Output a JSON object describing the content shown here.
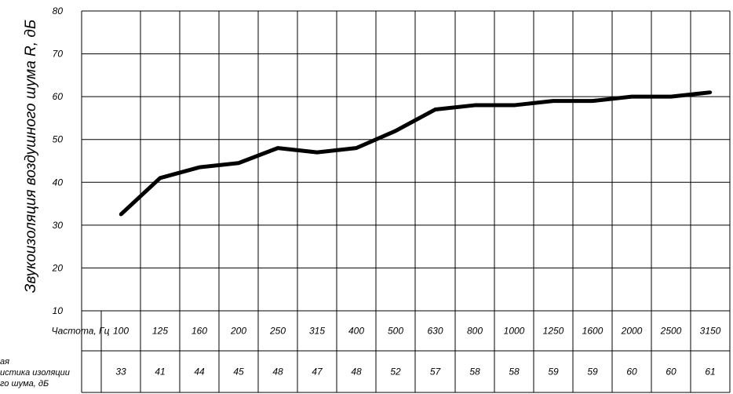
{
  "chart_data": {
    "type": "line",
    "ylabel": "Звукоизоляция воздушного шума R, дБ",
    "ylim": [
      10,
      80
    ],
    "yticks": [
      80,
      70,
      60,
      50,
      40,
      30,
      20,
      10
    ],
    "grid": true,
    "x": [
      "100",
      "125",
      "160",
      "200",
      "250",
      "315",
      "400",
      "500",
      "630",
      "800",
      "1000",
      "1250",
      "1600",
      "2000",
      "2500",
      "3150"
    ],
    "series": [
      {
        "values": [
          32.5,
          41,
          43.5,
          44.5,
          48,
          47,
          48,
          52,
          57,
          58,
          58,
          59,
          59,
          60,
          60,
          61
        ]
      }
    ],
    "table": {
      "row1_label": "Частота, Гц",
      "row1_values": [
        "100",
        "125",
        "160",
        "200",
        "250",
        "315",
        "400",
        "500",
        "630",
        "800",
        "1000",
        "1250",
        "1600",
        "2000",
        "2500",
        "3150"
      ],
      "row2_label_lines": [
        "ая",
        "истика изоляции",
        "го шума, дБ"
      ],
      "row2_values": [
        "33",
        "41",
        "44",
        "45",
        "48",
        "47",
        "48",
        "52",
        "57",
        "58",
        "58",
        "59",
        "59",
        "60",
        "60",
        "61"
      ]
    },
    "line_color": "#000000"
  }
}
